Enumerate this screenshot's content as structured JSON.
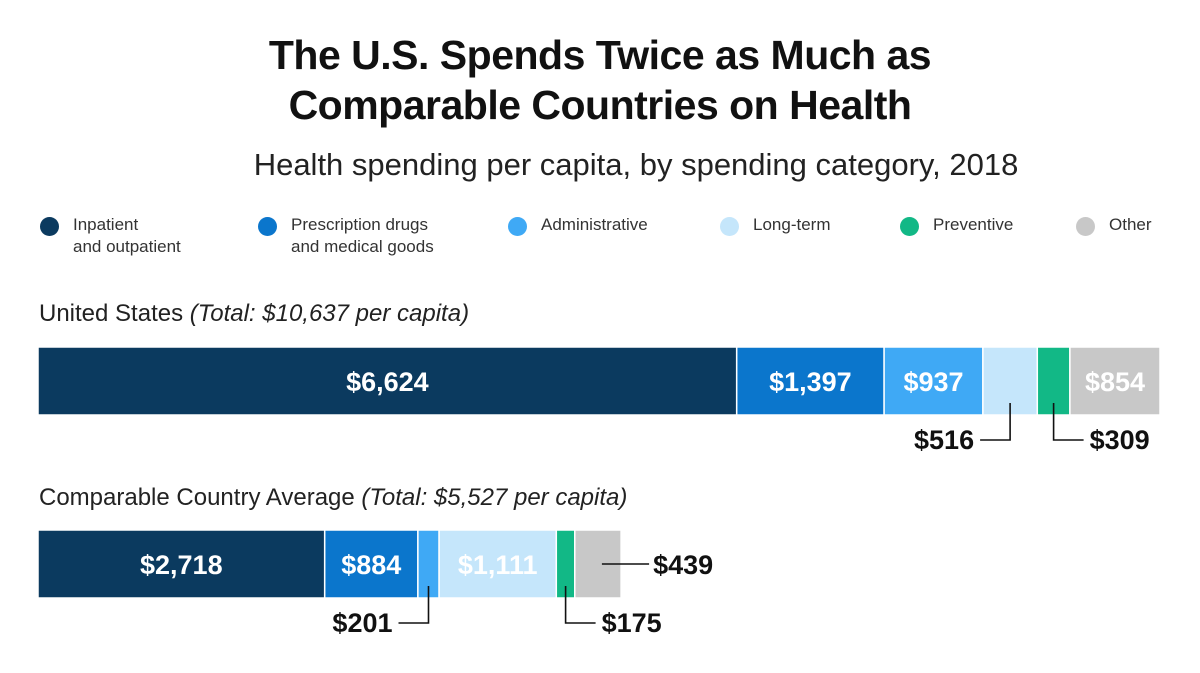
{
  "title_line1": "The U.S. Spends Twice as Much as",
  "title_line2": "Comparable Countries on Health",
  "subtitle": "Health spending per capita, by spending category, 2018",
  "legend": [
    {
      "line1": "Inpatient",
      "line2": "and outpatient",
      "color": "#0b3a5f"
    },
    {
      "line1": "Prescription drugs",
      "line2": "and medical goods",
      "color": "#0b76cc"
    },
    {
      "line1": "Administrative",
      "line2": "",
      "color": "#3fa9f5"
    },
    {
      "line1": "Long-term",
      "line2": "",
      "color": "#c5e6fb"
    },
    {
      "line1": "Preventive",
      "line2": "",
      "color": "#12b886"
    },
    {
      "line1": "Other",
      "line2": "",
      "color": "#c8c8c8"
    }
  ],
  "rows": [
    {
      "label": "United States",
      "total": "(Total: $10,637 per capita)"
    },
    {
      "label": "Comparable Country Average",
      "total": "(Total: $5,527 per capita)"
    }
  ],
  "chart_data": {
    "type": "bar",
    "orientation": "horizontal",
    "stacked": true,
    "categories": [
      "United States",
      "Comparable Country Average"
    ],
    "series": [
      {
        "name": "Inpatient and outpatient",
        "values": [
          6624,
          2718
        ],
        "labels": [
          "$6,624",
          "$2,718"
        ],
        "color": "#0b3a5f"
      },
      {
        "name": "Prescription drugs and medical goods",
        "values": [
          1397,
          884
        ],
        "labels": [
          "$1,397",
          "$884"
        ],
        "color": "#0b76cc"
      },
      {
        "name": "Administrative",
        "values": [
          937,
          201
        ],
        "labels": [
          "$937",
          "$201"
        ],
        "color": "#3fa9f5"
      },
      {
        "name": "Long-term",
        "values": [
          516,
          1111
        ],
        "labels": [
          "$516",
          "$1,111"
        ],
        "color": "#c5e6fb"
      },
      {
        "name": "Preventive",
        "values": [
          309,
          175
        ],
        "labels": [
          "$309",
          "$175"
        ],
        "color": "#12b886"
      },
      {
        "name": "Other",
        "values": [
          854,
          439
        ],
        "labels": [
          "$854",
          "$439"
        ],
        "color": "#c8c8c8"
      }
    ]
  }
}
